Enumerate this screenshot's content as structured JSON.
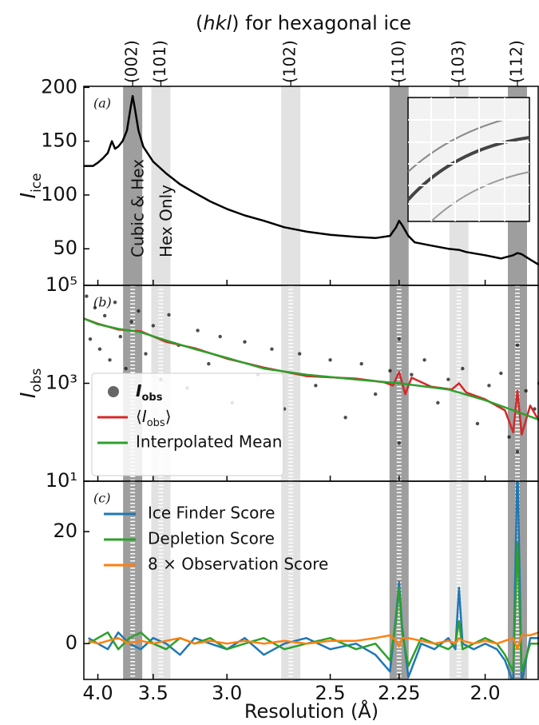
{
  "title": "(hkl) for hexagonal ice",
  "xlabel": "Resolution (Å)",
  "x_scale": "reciprocal",
  "xlim": [
    4.15,
    1.87
  ],
  "xticks": [
    {
      "value": 4,
      "label": "4.0"
    },
    3.5,
    {
      "value": 3,
      "label": "3.0"
    },
    2.5,
    2.25,
    {
      "value": 2,
      "label": "2.0"
    }
  ],
  "bands": [
    {
      "label": "(002)",
      "d": 3.67,
      "color": "#9e9e9e"
    },
    {
      "label": "(101)",
      "d": 3.44,
      "color": "#e2e2e2"
    },
    {
      "label": "(102)",
      "d": 2.67,
      "color": "#e2e2e2"
    },
    {
      "label": "(110)",
      "d": 2.25,
      "color": "#9e9e9e"
    },
    {
      "label": "(103)",
      "d": 2.07,
      "color": "#e2e2e2"
    },
    {
      "label": "(112)",
      "d": 1.92,
      "color": "#9e9e9e"
    }
  ],
  "annotations": [
    "Cubic & Hex",
    "Hex Only"
  ],
  "chart_data": [
    {
      "type": "line",
      "panel_label": "(a)",
      "ylabel": "Iice",
      "ylim": [
        16,
        201
      ],
      "yticks": [
        50,
        100,
        150,
        200
      ],
      "series": [
        {
          "color": "#000000",
          "x": [
            4.15,
            4.05,
            4.0,
            3.95,
            3.9,
            3.86,
            3.83,
            3.8,
            3.76,
            3.72,
            3.69,
            3.67,
            3.65,
            3.62,
            3.58,
            3.54,
            3.5,
            3.4,
            3.3,
            3.2,
            3.1,
            3.0,
            2.9,
            2.8,
            2.7,
            2.6,
            2.5,
            2.4,
            2.33,
            2.28,
            2.26,
            2.25,
            2.24,
            2.22,
            2.2,
            2.15,
            2.1,
            2.07,
            2.05,
            2.0,
            1.96,
            1.93,
            1.92,
            1.91,
            1.89,
            1.87
          ],
          "values": [
            127,
            127,
            130,
            134,
            139,
            150,
            143,
            145,
            150,
            160,
            180,
            192,
            180,
            160,
            145,
            138,
            131,
            120,
            110,
            102,
            94,
            87,
            81,
            76,
            70,
            66,
            63,
            61,
            60,
            62,
            70,
            76,
            72,
            62,
            56,
            53,
            50,
            49,
            47,
            44,
            41,
            44,
            46,
            45,
            40,
            35
          ]
        }
      ]
    },
    {
      "type": "scatter-line",
      "panel_label": "(b)",
      "ylabel": "Iobs",
      "log_y": true,
      "ylim": [
        10,
        100000
      ],
      "yticks": [
        {
          "value": 10,
          "label": "10¹"
        },
        {
          "value": 1000,
          "label": "10³"
        },
        {
          "value": 100000,
          "label": "10⁵"
        }
      ],
      "legend": "lower left",
      "series": [
        {
          "name": "Iobs",
          "kind": "scatter",
          "color": "#111111",
          "x": [
            4.12,
            4.08,
            4.03,
            3.98,
            3.93,
            3.88,
            3.83,
            3.78,
            3.73,
            3.68,
            3.62,
            3.56,
            3.5,
            3.44,
            3.38,
            3.31,
            3.25,
            3.18,
            3.11,
            3.04,
            2.97,
            2.9,
            2.83,
            2.76,
            2.7,
            2.63,
            2.56,
            2.5,
            2.44,
            2.38,
            2.33,
            2.28,
            2.25,
            2.25,
            2.21,
            2.17,
            2.13,
            2.1,
            2.06,
            2.02,
            1.99,
            1.96,
            1.94,
            1.92,
            1.92,
            1.9,
            1.88,
            1.87
          ],
          "values": [
            60000,
            8000,
            35000,
            5000,
            24000,
            3000,
            45000,
            9000,
            2000,
            18000,
            30000,
            4000,
            15000,
            1200,
            25000,
            6000,
            800,
            12000,
            2500,
            9000,
            400,
            7000,
            1500,
            5000,
            300,
            4000,
            900,
            3000,
            200,
            2500,
            600,
            1800,
            8000,
            60,
            1500,
            3000,
            400,
            1200,
            2000,
            150,
            900,
            1600,
            80,
            6000,
            40,
            700,
            300,
            1000
          ]
        },
        {
          "name": "⟨Iobs⟩",
          "kind": "line",
          "color": "#d62728",
          "x": [
            4.15,
            4.0,
            3.8,
            3.6,
            3.4,
            3.2,
            3.0,
            2.8,
            2.6,
            2.4,
            2.3,
            2.27,
            2.25,
            2.23,
            2.21,
            2.15,
            2.09,
            2.07,
            2.05,
            2.0,
            1.95,
            1.93,
            1.92,
            1.91,
            1.89,
            1.87
          ],
          "values": [
            21000,
            16500,
            12500,
            11500,
            7000,
            5200,
            3200,
            2100,
            1400,
            1250,
            1050,
            900,
            1700,
            600,
            1300,
            850,
            750,
            1000,
            650,
            470,
            280,
            100,
            700,
            90,
            350,
            170
          ]
        },
        {
          "name": "Interpolated Mean",
          "kind": "line",
          "color": "#2ca02c",
          "x": [
            4.15,
            4.0,
            3.8,
            3.6,
            3.4,
            3.2,
            3.0,
            2.8,
            2.6,
            2.4,
            2.25,
            2.1,
            2.0,
            1.92,
            1.87
          ],
          "values": [
            21000,
            16000,
            13000,
            11000,
            7500,
            5000,
            3300,
            2000,
            1500,
            1200,
            1000,
            750,
            450,
            260,
            180
          ]
        }
      ]
    },
    {
      "type": "line",
      "panel_label": "(c)",
      "ylim": [
        -6.4,
        29
      ],
      "yticks": [
        0,
        20
      ],
      "legend": "upper left",
      "x": [
        4.1,
        4.0,
        3.9,
        3.8,
        3.7,
        3.6,
        3.5,
        3.4,
        3.3,
        3.2,
        3.1,
        3.0,
        2.9,
        2.8,
        2.7,
        2.6,
        2.5,
        2.4,
        2.33,
        2.28,
        2.26,
        2.25,
        2.24,
        2.22,
        2.18,
        2.14,
        2.1,
        2.08,
        2.07,
        2.06,
        2.03,
        2.0,
        1.97,
        1.95,
        1.93,
        1.92,
        1.91,
        1.89,
        1.87
      ],
      "series": [
        {
          "name": "Ice Finder Score",
          "color": "#1f77b4",
          "values": [
            1,
            0,
            -1,
            2,
            0,
            -1,
            1,
            0,
            -2,
            1,
            0,
            -1,
            1,
            -2,
            0,
            1,
            -1,
            0,
            -2,
            -5,
            5,
            11,
            3,
            -6,
            0,
            -1,
            1,
            -1,
            10,
            0,
            -1,
            0,
            -1,
            -3,
            -7,
            33,
            -7,
            1,
            1
          ]
        },
        {
          "name": "Depletion Score",
          "color": "#2ca02c",
          "values": [
            0,
            1,
            2,
            -1,
            1,
            2,
            0,
            -1,
            1,
            0,
            1,
            -1,
            0,
            1,
            -1,
            0,
            1,
            -1,
            0,
            -3,
            4,
            10,
            2,
            -4,
            1,
            0,
            -1,
            0,
            4,
            -1,
            0,
            1,
            0,
            -2,
            -5,
            18,
            -5,
            0,
            0
          ]
        },
        {
          "name": "8 × Observation Score",
          "color": "#ff7f0e",
          "values": [
            0.5,
            0,
            0.5,
            1,
            0,
            0.5,
            0,
            0.5,
            1,
            0,
            0.5,
            0,
            0.5,
            0,
            0.5,
            0,
            0.5,
            0.5,
            1,
            1.5,
            0.5,
            -0.5,
            1,
            1,
            0.5,
            0,
            0.5,
            0,
            1,
            0.5,
            0,
            0.5,
            0,
            0.5,
            1,
            -1,
            1.5,
            1.5,
            2
          ]
        }
      ]
    }
  ]
}
